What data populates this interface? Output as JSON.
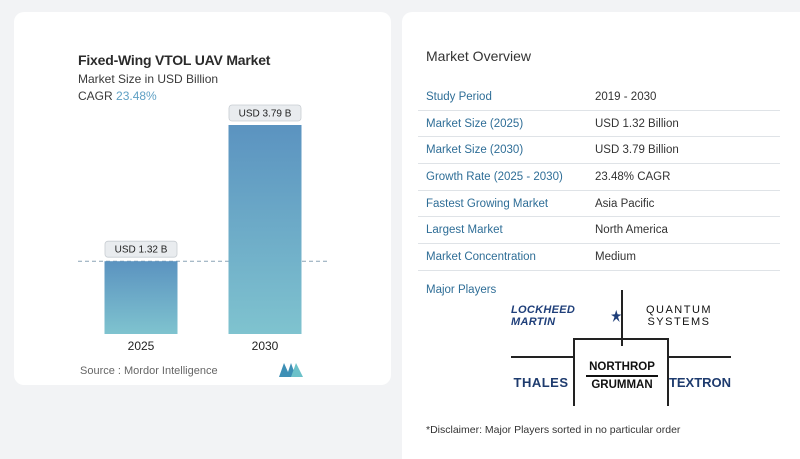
{
  "chart": {
    "title": "Fixed-Wing VTOL UAV Market",
    "subtitle": "Market Size in USD Billion",
    "cagr_label": "CAGR",
    "cagr_value": "23.48%",
    "source": "Source :  Mordor Intelligence"
  },
  "chart_data": {
    "type": "bar",
    "categories": [
      "2025",
      "2030"
    ],
    "values": [
      1.32,
      3.79
    ],
    "data_labels": [
      "USD 1.32 B",
      "USD 3.79 B"
    ],
    "title": "Fixed-Wing VTOL UAV Market",
    "ylabel": "Market Size in USD Billion",
    "ylim": [
      0,
      3.79
    ],
    "grid": false,
    "reference_line": 1.32,
    "bar_color_top": "#5b93c0",
    "bar_color_bottom": "#7fc3cf"
  },
  "overview": {
    "title": "Market Overview",
    "rows": [
      {
        "label": "Study Period",
        "value": "2019 - 2030"
      },
      {
        "label": "Market Size (2025)",
        "value": "USD 1.32 Billion"
      },
      {
        "label": "Market Size (2030)",
        "value": "USD 3.79 Billion"
      },
      {
        "label": "Growth Rate (2025 - 2030)",
        "value": "23.48% CAGR"
      },
      {
        "label": "Fastest Growing Market",
        "value": "Asia Pacific"
      },
      {
        "label": "Largest Market",
        "value": "North America"
      },
      {
        "label": "Market Concentration",
        "value": "Medium"
      }
    ]
  },
  "major_players": {
    "title": "Major Players",
    "logos": {
      "lockheed": "LOCKHEED MARTIN",
      "quantum_line1": "QUANTUM",
      "quantum_line2": "SYSTEMS",
      "thales": "THALES",
      "northrop_line1": "NORTHROP",
      "northrop_line2": "GRUMMAN",
      "textron": "TEXTRON"
    }
  },
  "disclaimer": "*Disclaimer: Major Players sorted in no particular order",
  "colors": {
    "accent": "#2f6e97",
    "cagr": "#5fa0c4"
  }
}
